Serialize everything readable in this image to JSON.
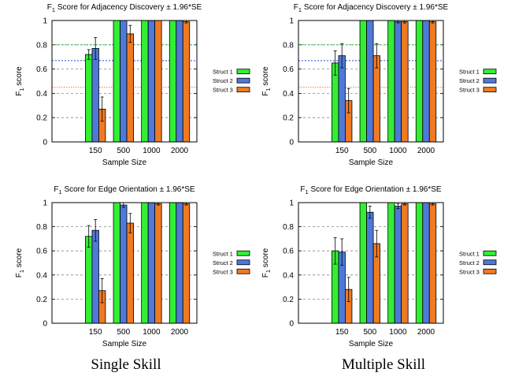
{
  "colors": {
    "struct1": "#33ee33",
    "struct2": "#4f79d8",
    "struct3": "#f07a22",
    "ref_green": "#33bb33",
    "ref_blue": "#2244dd",
    "ref_orange": "#ff7722"
  },
  "captions": {
    "left": "Single Skill",
    "right": "Multiple Skill"
  },
  "chart_data": [
    {
      "type": "bar",
      "title": "F1 Score for Adjacency Discovery ± 1.96*SE",
      "xlabel": "Sample Size",
      "ylabel": "F1 score",
      "ylim": [
        0,
        1
      ],
      "yticks": [
        "0",
        "0.2",
        "0.4",
        "0.6",
        "0.8",
        "1"
      ],
      "grid": true,
      "legend": "right",
      "categories": [
        "150",
        "500",
        "1000",
        "2000"
      ],
      "series": [
        {
          "name": "Struct 1",
          "values": [
            0.72,
            1.0,
            1.0,
            1.0
          ],
          "err": [
            0.04,
            0,
            0,
            0
          ]
        },
        {
          "name": "Struct 2",
          "values": [
            0.77,
            1.0,
            1.0,
            1.0
          ],
          "err": [
            0.09,
            0,
            0,
            0
          ]
        },
        {
          "name": "Struct 3",
          "values": [
            0.27,
            0.89,
            1.0,
            0.99
          ],
          "err": [
            0.1,
            0.07,
            0,
            0.01
          ]
        }
      ],
      "reference_lines": [
        0.8,
        0.67,
        0.45
      ]
    },
    {
      "type": "bar",
      "title": "F1 Score for Adjacency Discovery ± 1.96*SE",
      "xlabel": "Sample Size",
      "ylabel": "F1 score",
      "ylim": [
        0,
        1
      ],
      "yticks": [
        "0",
        "0.2",
        "0.4",
        "0.6",
        "0.8",
        "1"
      ],
      "grid": true,
      "legend": "right",
      "categories": [
        "150",
        "500",
        "1000",
        "2000"
      ],
      "series": [
        {
          "name": "Struct 1",
          "values": [
            0.65,
            1.0,
            1.0,
            1.0
          ],
          "err": [
            0.1,
            0,
            0,
            0
          ]
        },
        {
          "name": "Struct 2",
          "values": [
            0.71,
            1.0,
            0.99,
            1.0
          ],
          "err": [
            0.1,
            0,
            0.01,
            0
          ]
        },
        {
          "name": "Struct 3",
          "values": [
            0.34,
            0.71,
            0.99,
            0.99
          ],
          "err": [
            0.1,
            0.1,
            0.01,
            0.01
          ]
        }
      ],
      "reference_lines": [
        0.8,
        0.67,
        0.45
      ]
    },
    {
      "type": "bar",
      "title": "F1 Score for Edge Orientation ± 1.96*SE",
      "xlabel": "Sample Size",
      "ylabel": "F1 score",
      "ylim": [
        0,
        1
      ],
      "yticks": [
        "0",
        "0.2",
        "0.4",
        "0.6",
        "0.8",
        "1"
      ],
      "grid": true,
      "legend": "right",
      "categories": [
        "150",
        "500",
        "1000",
        "2000"
      ],
      "series": [
        {
          "name": "Struct 1",
          "values": [
            0.72,
            1.0,
            1.0,
            1.0
          ],
          "err": [
            0.09,
            0,
            0,
            0
          ]
        },
        {
          "name": "Struct 2",
          "values": [
            0.77,
            0.98,
            1.0,
            1.0
          ],
          "err": [
            0.09,
            0.02,
            0,
            0
          ]
        },
        {
          "name": "Struct 3",
          "values": [
            0.27,
            0.83,
            0.99,
            0.99
          ],
          "err": [
            0.1,
            0.08,
            0.01,
            0.01
          ]
        }
      ],
      "reference_lines": []
    },
    {
      "type": "bar",
      "title": "F1 Score for Edge Orientation ± 1.96*SE",
      "xlabel": "Sample Size",
      "ylabel": "F1 score",
      "ylim": [
        0,
        1
      ],
      "yticks": [
        "0",
        "0.2",
        "0.4",
        "0.6",
        "0.8",
        "1"
      ],
      "grid": true,
      "legend": "right",
      "categories": [
        "150",
        "500",
        "1000",
        "2000"
      ],
      "series": [
        {
          "name": "Struct 1",
          "values": [
            0.6,
            1.0,
            1.0,
            1.0
          ],
          "err": [
            0.11,
            0,
            0,
            0
          ]
        },
        {
          "name": "Struct 2",
          "values": [
            0.59,
            0.92,
            0.97,
            1.0
          ],
          "err": [
            0.11,
            0.05,
            0.02,
            0
          ]
        },
        {
          "name": "Struct 3",
          "values": [
            0.28,
            0.66,
            0.99,
            0.99
          ],
          "err": [
            0.1,
            0.11,
            0.01,
            0.01
          ]
        }
      ],
      "reference_lines": []
    }
  ]
}
